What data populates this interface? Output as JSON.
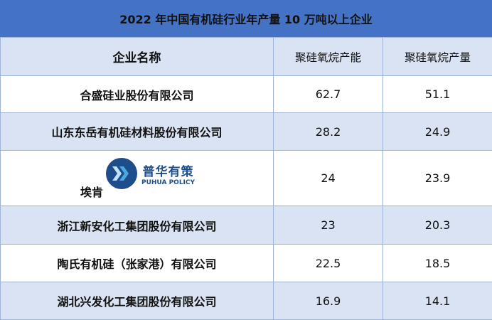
{
  "title": "2022 年中国有机硅行业年产量 10 万吨以上企业",
  "headers": [
    "企业名称",
    "聚硅氧烷产能",
    "聚硅氧烷产量"
  ],
  "rows": [
    {
      "name": "合盛硅业股份有限公司",
      "capacity": "62.7",
      "output": "51.1"
    },
    {
      "name": "山东东岳有机硅材料股份有限公司",
      "capacity": "28.2",
      "output": "24.9"
    },
    {
      "name": "埃肯",
      "capacity": "24",
      "output": "23.9"
    },
    {
      "name": "浙江新安化工集团股份有限公司",
      "capacity": "23",
      "output": "20.3"
    },
    {
      "name": "陶氏有机硅（张家港）有限公司",
      "capacity": "22.5",
      "output": "18.5"
    },
    {
      "name": "湖北兴发化工集团股份有限公司",
      "capacity": "16.9",
      "output": "14.1"
    }
  ],
  "watermark": {
    "cn": "普华有策",
    "en": "PUHUA POLICY"
  },
  "colors": {
    "title_bg": "#4472c4",
    "alt_row_bg": "#dae3f3",
    "border": "#9eb3d6"
  }
}
